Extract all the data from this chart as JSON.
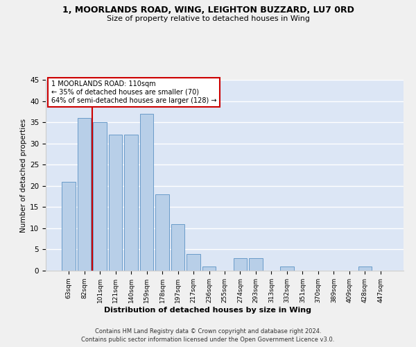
{
  "title": "1, MOORLANDS ROAD, WING, LEIGHTON BUZZARD, LU7 0RD",
  "subtitle": "Size of property relative to detached houses in Wing",
  "xlabel": "Distribution of detached houses by size in Wing",
  "ylabel": "Number of detached properties",
  "categories": [
    "63sqm",
    "82sqm",
    "101sqm",
    "121sqm",
    "140sqm",
    "159sqm",
    "178sqm",
    "197sqm",
    "217sqm",
    "236sqm",
    "255sqm",
    "274sqm",
    "293sqm",
    "313sqm",
    "332sqm",
    "351sqm",
    "370sqm",
    "389sqm",
    "409sqm",
    "428sqm",
    "447sqm"
  ],
  "values": [
    21,
    36,
    35,
    32,
    32,
    37,
    18,
    11,
    4,
    1,
    0,
    3,
    3,
    0,
    1,
    0,
    0,
    0,
    0,
    1,
    0
  ],
  "bar_color": "#b8cfe8",
  "bar_edge_color": "#6a9cc9",
  "background_color": "#dce6f5",
  "grid_color": "#ffffff",
  "property_line_x": 2,
  "property_label": "1 MOORLANDS ROAD: 110sqm",
  "annotation_line1": "← 35% of detached houses are smaller (70)",
  "annotation_line2": "64% of semi-detached houses are larger (128) →",
  "annotation_box_color": "#ffffff",
  "annotation_box_edge": "#cc0000",
  "property_line_color": "#cc0000",
  "footer1": "Contains HM Land Registry data © Crown copyright and database right 2024.",
  "footer2": "Contains public sector information licensed under the Open Government Licence v3.0.",
  "ylim": [
    0,
    45
  ],
  "yticks": [
    0,
    5,
    10,
    15,
    20,
    25,
    30,
    35,
    40,
    45
  ],
  "fig_bg": "#f0f0f0"
}
